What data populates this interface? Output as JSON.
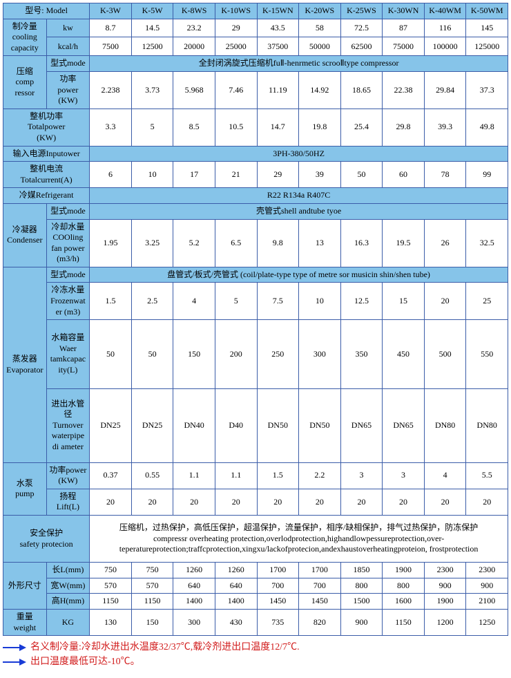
{
  "colors": {
    "header_bg": "#86c4e9",
    "border": "#3a5ca8",
    "note_text": "#d11a1a",
    "arrow": "#183bd6"
  },
  "labels": {
    "model": "型号: Model",
    "cooling": "制冷量\ncooling\ncapacity",
    "kw": "kw",
    "kcal": "kcal/h",
    "compressor": "压缩\ncomp\nressor",
    "comp_mode": "型式mode",
    "comp_mode_val": "全封闭涡旋式压缩机fuⅡ-henrmetic scrooⅡtype compressor",
    "comp_power": "功率\npower\n(KW)",
    "total_power": "整机功率\nTotalpower\n(KW)",
    "input_power": "输入电源Inputower",
    "input_power_val": "3PH-380/50HZ",
    "total_current": "整机电流\nTotalcurrent(A)",
    "refrigerant": "冷媒Refrigerant",
    "refrigerant_val": "R22 R134a R407C",
    "condenser": "冷凝器\nCondenser",
    "cond_mode": "型式mode",
    "cond_mode_val": "壳管式shell andtube tyoe",
    "cond_fan": "冷却水量\nCOOling\nfan power\n(m3/h)",
    "evaporator": "蒸发器\nEvaporator",
    "evap_mode": "型式mode",
    "evap_mode_val": "盘管式/板式/壳管式 (coil/plate-type type of metre sor musicin shin/shen tube)",
    "evap_frozen": "冷冻水量\nFrozenwat\ner (m3)",
    "evap_tank": "水箱容量\nWaer\ntamkcapac\nity(L)",
    "evap_pipe": "进出水管径\nTurnover\nwaterpipe\ndi ameter",
    "pump": "水泵\npump",
    "pump_power": "功率power\n(KW)",
    "pump_lift": "扬程\nLift(L)",
    "safety": "安全保护\nsafety protecion",
    "safety_val": "压缩机，过热保护，高低压保护，超温保护，流量保护，相序/缺相保护，排气过热保护，防冻保护\ncompressr overheating protection,overlodprotection,highandlowpessureprotection,over-teperatureprotection;traffcprotection,xingxu/lackofprotecion,andexhaustoverheatingproteion,     frostprotection",
    "dims": "外形尺寸",
    "len": "长L(mm)",
    "wid": "宽W(mm)",
    "hei": "高H(mm)",
    "weight": "重量\nweight",
    "kg": "KG"
  },
  "models": [
    "K-3W",
    "K-5W",
    "K-8WS",
    "K-10WS",
    "K-15WN",
    "K-20WS",
    "K-25WS",
    "K-30WN",
    "K-40WM",
    "K-50WM"
  ],
  "rows": {
    "kw": [
      "8.7",
      "14.5",
      "23.2",
      "29",
      "43.5",
      "58",
      "72.5",
      "87",
      "116",
      "145"
    ],
    "kcal": [
      "7500",
      "12500",
      "20000",
      "25000",
      "37500",
      "50000",
      "62500",
      "75000",
      "100000",
      "125000"
    ],
    "comp_power": [
      "2.238",
      "3.73",
      "5.968",
      "7.46",
      "11.19",
      "14.92",
      "18.65",
      "22.38",
      "29.84",
      "37.3"
    ],
    "total_power": [
      "3.3",
      "5",
      "8.5",
      "10.5",
      "14.7",
      "19.8",
      "25.4",
      "29.8",
      "39.3",
      "49.8"
    ],
    "total_current": [
      "6",
      "10",
      "17",
      "21",
      "29",
      "39",
      "50",
      "60",
      "78",
      "99"
    ],
    "cond_fan": [
      "1.95",
      "3.25",
      "5.2",
      "6.5",
      "9.8",
      "13",
      "16.3",
      "19.5",
      "26",
      "32.5"
    ],
    "evap_frozen": [
      "1.5",
      "2.5",
      "4",
      "5",
      "7.5",
      "10",
      "12.5",
      "15",
      "20",
      "25"
    ],
    "evap_tank": [
      "50",
      "50",
      "150",
      "200",
      "250",
      "300",
      "350",
      "450",
      "500",
      "550"
    ],
    "evap_pipe": [
      "DN25",
      "DN25",
      "DN40",
      "D40",
      "DN50",
      "DN50",
      "DN65",
      "DN65",
      "DN80",
      "DN80"
    ],
    "pump_power": [
      "0.37",
      "0.55",
      "1.1",
      "1.1",
      "1.5",
      "2.2",
      "3",
      "3",
      "4",
      "5.5"
    ],
    "pump_lift": [
      "20",
      "20",
      "20",
      "20",
      "20",
      "20",
      "20",
      "20",
      "20",
      "20"
    ],
    "len": [
      "750",
      "750",
      "1260",
      "1260",
      "1700",
      "1700",
      "1850",
      "1900",
      "2300",
      "2300"
    ],
    "wid": [
      "570",
      "570",
      "640",
      "640",
      "700",
      "700",
      "800",
      "800",
      "900",
      "900"
    ],
    "hei": [
      "1150",
      "1150",
      "1400",
      "1400",
      "1450",
      "1450",
      "1500",
      "1600",
      "1900",
      "2100"
    ],
    "weight": [
      "130",
      "150",
      "300",
      "430",
      "735",
      "820",
      "900",
      "1150",
      "1200",
      "1250"
    ]
  },
  "notes": [
    "名义制冷量:冷却水进出水温度32/37℃,载冷剂进出口温度12/7℃.",
    "出口温度最低可达-10℃。"
  ]
}
